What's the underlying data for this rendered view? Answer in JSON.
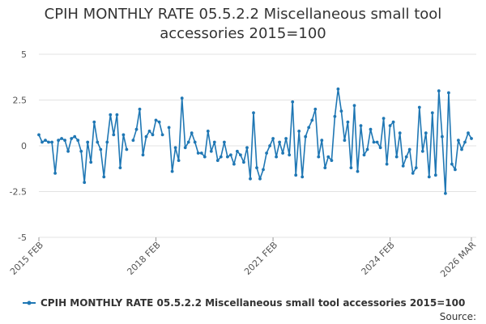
{
  "chart_data": {
    "type": "line",
    "title_line1": "CPIH MONTHLY RATE 05.5.2.2 Miscellaneous small tool",
    "title_line2": "accessories 2015=100",
    "ylim": [
      -5,
      5
    ],
    "y_ticks": [
      5,
      2.5,
      0,
      -2.5,
      -5
    ],
    "y_tick_labels": [
      "5",
      "2.5",
      "0",
      "-2.5",
      "-5"
    ],
    "x_tick_labels": [
      "2015 FEB",
      "2018 FEB",
      "2021 FEB",
      "2024 FEB",
      "2026 MAR"
    ],
    "x_tick_index": [
      0,
      36,
      72,
      108,
      133
    ],
    "series": [
      {
        "name": "CPIH MONTHLY RATE 05.5.2.2 Miscellaneous small tool accessories 2015=100",
        "color": "#1f77b4",
        "values": [
          0.6,
          0.2,
          0.3,
          0.2,
          0.2,
          -1.5,
          0.3,
          0.4,
          0.3,
          -0.3,
          0.4,
          0.5,
          0.3,
          -0.3,
          -2.0,
          0.2,
          -0.9,
          1.3,
          0.2,
          -0.2,
          -1.7,
          0.2,
          1.7,
          0.6,
          1.7,
          -1.2,
          0.6,
          -0.2,
          null,
          0.3,
          0.9,
          2.0,
          -0.5,
          0.5,
          0.8,
          0.6,
          1.4,
          1.3,
          0.6,
          null,
          1.0,
          -1.4,
          -0.1,
          -0.8,
          2.6,
          -0.1,
          0.2,
          0.7,
          0.2,
          -0.4,
          -0.4,
          -0.6,
          0.8,
          -0.3,
          0.2,
          -0.8,
          -0.6,
          0.2,
          -0.6,
          -0.5,
          -1.0,
          -0.3,
          -0.5,
          -0.9,
          -0.1,
          -1.8,
          1.8,
          -1.2,
          -1.8,
          -1.3,
          -0.4,
          0.0,
          0.4,
          -0.6,
          0.2,
          -0.4,
          0.4,
          -0.5,
          2.4,
          -1.6,
          0.8,
          -1.7,
          0.5,
          1.0,
          1.4,
          2.0,
          -0.6,
          0.3,
          -1.2,
          -0.6,
          -0.8,
          1.6,
          3.1,
          1.9,
          0.3,
          1.3,
          -1.2,
          2.2,
          -1.4,
          1.1,
          -0.5,
          -0.2,
          0.9,
          0.2,
          0.2,
          -0.1,
          1.5,
          -1.0,
          1.1,
          1.3,
          -0.6,
          0.7,
          -1.1,
          -0.6,
          -0.2,
          -1.5,
          -1.2,
          2.1,
          -0.3,
          0.7,
          -1.7,
          1.8,
          -1.6,
          3.0,
          0.5,
          -2.6,
          2.9,
          -1.0,
          -1.3,
          0.3,
          -0.2,
          0.2,
          0.7,
          0.4
        ]
      }
    ]
  },
  "legend": {
    "label": "CPIH MONTHLY RATE 05.5.2.2 Miscellaneous small tool accessories 2015=100"
  },
  "footer": {
    "source": "Source:"
  }
}
